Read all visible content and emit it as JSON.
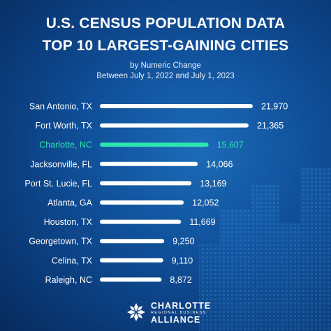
{
  "title_line1": "U.S. CENSUS POPULATION DATA",
  "title_line2": "TOP 10 LARGEST-GAINING CITIES",
  "subtitle_line1": "by Numeric Change",
  "subtitle_line2": "Between July 1, 2022 and July 1, 2023",
  "colors": {
    "bar": "#ffffff",
    "highlight": "#2ee6b0",
    "text": "#ffffff"
  },
  "chart_data": {
    "type": "bar",
    "orientation": "horizontal",
    "categories": [
      "San Antonio, TX",
      "Fort Worth, TX",
      "Charlotte, NC",
      "Jacksonville, FL",
      "Port St. Lucie, FL",
      "Atlanta, GA",
      "Houston, TX",
      "Georgetown, TX",
      "Celina, TX",
      "Raleigh, NC"
    ],
    "values": [
      21970,
      21365,
      15607,
      14066,
      13169,
      12052,
      11669,
      9250,
      9110,
      8872
    ],
    "value_labels": [
      "21,970",
      "21,365",
      "15,607",
      "14,066",
      "13,169",
      "12,052",
      "11,669",
      "9,250",
      "9,110",
      "8,872"
    ],
    "highlight": "Charlotte, NC",
    "xlim": [
      0,
      21970
    ],
    "title": "",
    "xlabel": "",
    "ylabel": "",
    "grid": false,
    "legend": "none"
  },
  "logo": {
    "icon": "charlotte-crown-icon",
    "line1": "CHARLOTTE",
    "line2": "REGIONAL BUSINESS",
    "line3": "ALLIANCE"
  }
}
